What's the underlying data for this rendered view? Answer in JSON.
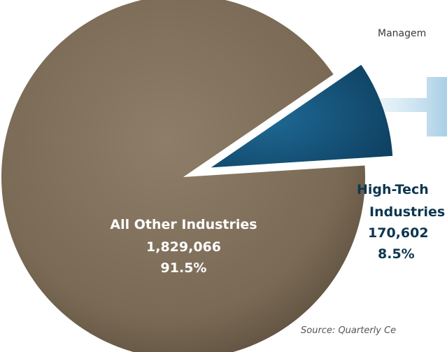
{
  "chart_data": {
    "type": "pie",
    "title": "",
    "slices": [
      {
        "label": "All Other Industries",
        "value": 1829066,
        "value_label": "1,829,066",
        "percent": 91.5,
        "percent_label": "91.5%",
        "color": "#7a6a55"
      },
      {
        "label_line1": "High-Tech",
        "label_line2": "Industries",
        "value": 170602,
        "value_label": "170,602",
        "percent": 8.5,
        "percent_label": "8.5%",
        "color": "#1b5b82"
      }
    ],
    "exploded_slice": "High-Tech Industries",
    "arrow_color": "#b9d8ea"
  },
  "annotations": {
    "top_right_text": "Managem",
    "source": "Source:  Quarterly Ce"
  },
  "colors": {
    "background": "#ffffff",
    "other_slice": "#7a6a55",
    "hightech_slice": "#1b5b82",
    "hightech_text": "#0d3650"
  }
}
